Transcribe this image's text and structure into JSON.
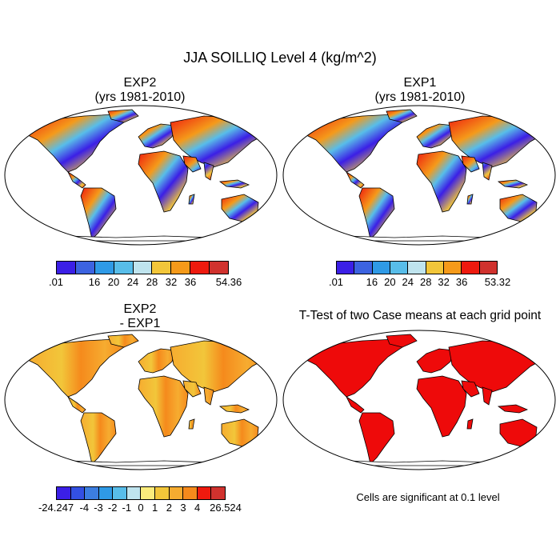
{
  "title": "JJA SOILLIQ Level 4 (kg/m^2)",
  "panels": {
    "exp2": {
      "line1": "EXP2",
      "line2": "(yrs 1981-2010)"
    },
    "exp1": {
      "line1": "EXP1",
      "line2": "(yrs 1981-2010)"
    },
    "diff": {
      "line1": "EXP2",
      "line2": "- EXP1"
    },
    "ttest": {
      "line1": "T-Test of two Case means at each grid point"
    }
  },
  "colorbars": {
    "exp2": {
      "colors": [
        "#3b1fe6",
        "#3c63e0",
        "#2f9ae6",
        "#58bde9",
        "#bfe4ee",
        "#f2c63a",
        "#f59a1a",
        "#ee1a0e",
        "#d0322e"
      ],
      "labels": [
        ".01",
        "16",
        "20",
        "24",
        "28",
        "32",
        "36",
        "54.36"
      ]
    },
    "exp1": {
      "colors": [
        "#3b1fe6",
        "#3c63e0",
        "#2f9ae6",
        "#58bde9",
        "#bfe4ee",
        "#f2c63a",
        "#f59a1a",
        "#ee1a0e",
        "#d0322e"
      ],
      "labels": [
        ".01",
        "16",
        "20",
        "24",
        "28",
        "32",
        "36",
        "53.32"
      ]
    },
    "diff": {
      "colors": [
        "#3b1fe6",
        "#3350e2",
        "#3c7ee0",
        "#2f9ae6",
        "#58bde9",
        "#bfe4ee",
        "#fbec7c",
        "#f2c63a",
        "#f6ac30",
        "#f58a1c",
        "#ee1a0e",
        "#d0322e"
      ],
      "labels": [
        "-24.247",
        "-4",
        "-3",
        "-2",
        "-1",
        "0",
        "1",
        "2",
        "3",
        "4",
        "26.524"
      ]
    }
  },
  "significance_note": "Cells are significant at 0.1 level",
  "palette": {
    "ocean": "#ffffff",
    "outline": "#000000",
    "significant": "#ee0a0a"
  }
}
